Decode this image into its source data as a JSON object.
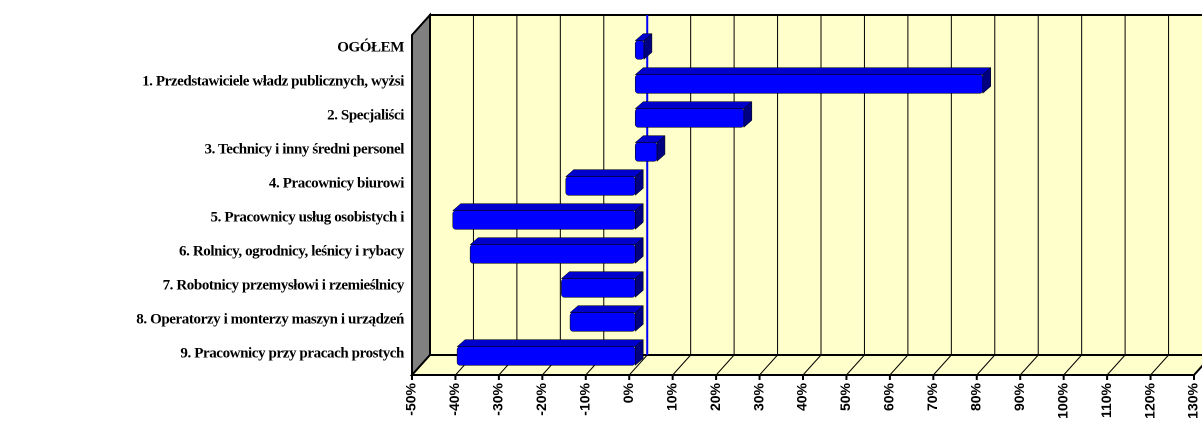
{
  "chart_data": {
    "type": "bar3d_horizontal",
    "categories": [
      "OGÓŁEM",
      "1. Przedstawiciele władz publicznych, wyżsi",
      "2. Specjaliści ",
      "3. Technicy i inny średni personel",
      "4. Pracownicy biurowi",
      "5. Pracownicy usług osobistych i",
      "6. Rolnicy, ogrodnicy, leśnicy i rybacy",
      "7. Robotnicy przemysłowi i rzemieślnicy",
      "8. Operatorzy i monterzy maszyn i urządzeń",
      "9. Pracownicy przy pracach prostych"
    ],
    "values": [
      2,
      80,
      25,
      5,
      -16,
      -42,
      -38,
      -17,
      -15,
      -41
    ],
    "color": "#0000ff",
    "xlim": [
      -50,
      130
    ],
    "xticks": [
      {
        "value": -50,
        "label": "-50%"
      },
      {
        "value": -40,
        "label": "-40%"
      },
      {
        "value": -30,
        "label": "-30%"
      },
      {
        "value": -20,
        "label": "-20%"
      },
      {
        "value": -10,
        "label": "-10%"
      },
      {
        "value": 0,
        "label": "0%"
      },
      {
        "value": 10,
        "label": "10%"
      },
      {
        "value": 20,
        "label": "20%"
      },
      {
        "value": 30,
        "label": "30%"
      },
      {
        "value": 40,
        "label": "40%"
      },
      {
        "value": 50,
        "label": "50%"
      },
      {
        "value": 60,
        "label": "60%"
      },
      {
        "value": 70,
        "label": "70%"
      },
      {
        "value": 80,
        "label": "80%"
      },
      {
        "value": 90,
        "label": "90%"
      },
      {
        "value": 100,
        "label": "100%"
      },
      {
        "value": 110,
        "label": "110%"
      },
      {
        "value": 120,
        "label": "120%"
      },
      {
        "value": 130,
        "label": "130%"
      }
    ],
    "grid": true
  }
}
